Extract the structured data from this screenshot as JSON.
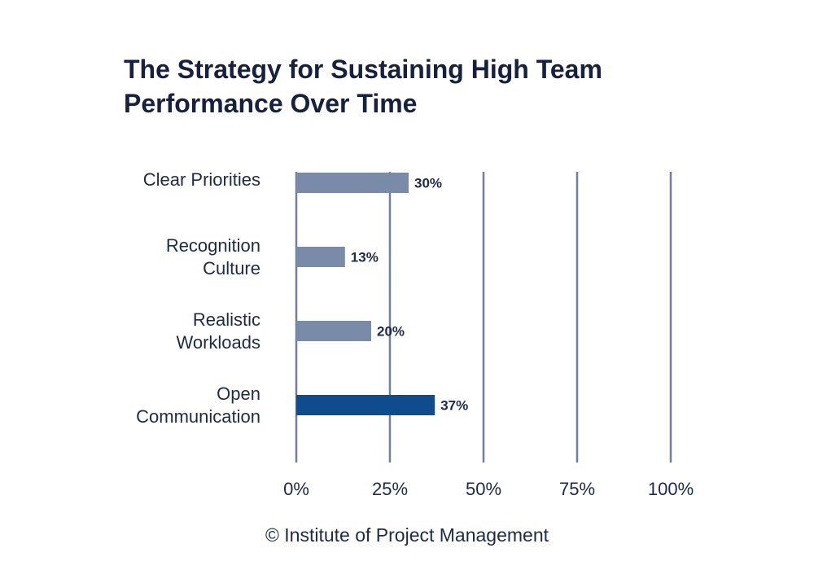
{
  "chart_data": {
    "type": "bar",
    "orientation": "horizontal",
    "title": "The Strategy for Sustaining High Team Performance Over Time",
    "categories": [
      [
        "Clear Priorities"
      ],
      [
        "Recognition",
        "Culture"
      ],
      [
        "Realistic",
        "Workloads"
      ],
      [
        "Open",
        "Communication"
      ]
    ],
    "values": [
      30,
      13,
      20,
      37
    ],
    "value_labels": [
      "30%",
      "13%",
      "20%",
      "37%"
    ],
    "xlim": [
      0,
      100
    ],
    "ticks": [
      0,
      25,
      50,
      75,
      100
    ],
    "tick_labels": [
      "0%",
      "25%",
      "50%",
      "75%",
      "100%"
    ],
    "grid": true,
    "colors": {
      "bar": "#7a8ba9",
      "highlight_bar": "#0f4c8e",
      "grid": "#6f7f9d",
      "highlight_index": 3
    }
  },
  "source": "© Institute of Project Management"
}
